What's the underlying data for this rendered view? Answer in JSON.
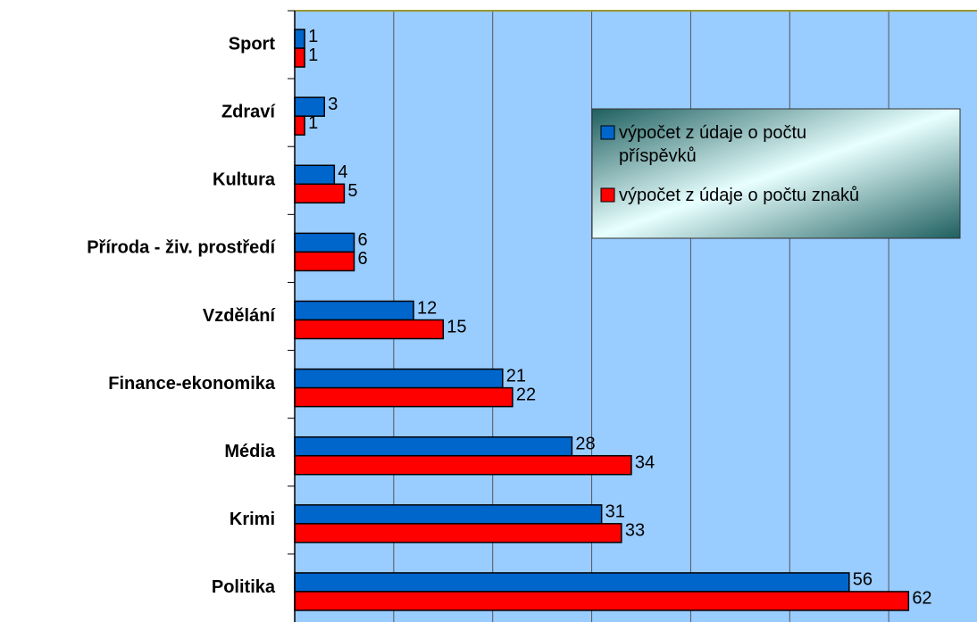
{
  "chart_data": {
    "type": "bar",
    "orientation": "horizontal",
    "categories": [
      "Sport",
      "Zdraví",
      "Kultura",
      "Příroda - živ. prostředí",
      "Vzdělání",
      "Finance-ekonomika",
      "Média",
      "Krimi",
      "Politika"
    ],
    "series": [
      {
        "name": "výpočet z údaje o počtu příspěvků",
        "color": "#0066cc",
        "values": [
          1,
          3,
          4,
          6,
          12,
          21,
          28,
          31,
          56
        ]
      },
      {
        "name": "výpočet z údaje o počtu znaků",
        "color": "#ff0000",
        "values": [
          1,
          1,
          5,
          6,
          15,
          22,
          34,
          33,
          62
        ]
      }
    ],
    "xlim": [
      0,
      70
    ],
    "xticks": [
      0,
      10,
      20,
      30,
      40,
      50,
      60
    ],
    "grid": true,
    "legend": "upper right"
  }
}
